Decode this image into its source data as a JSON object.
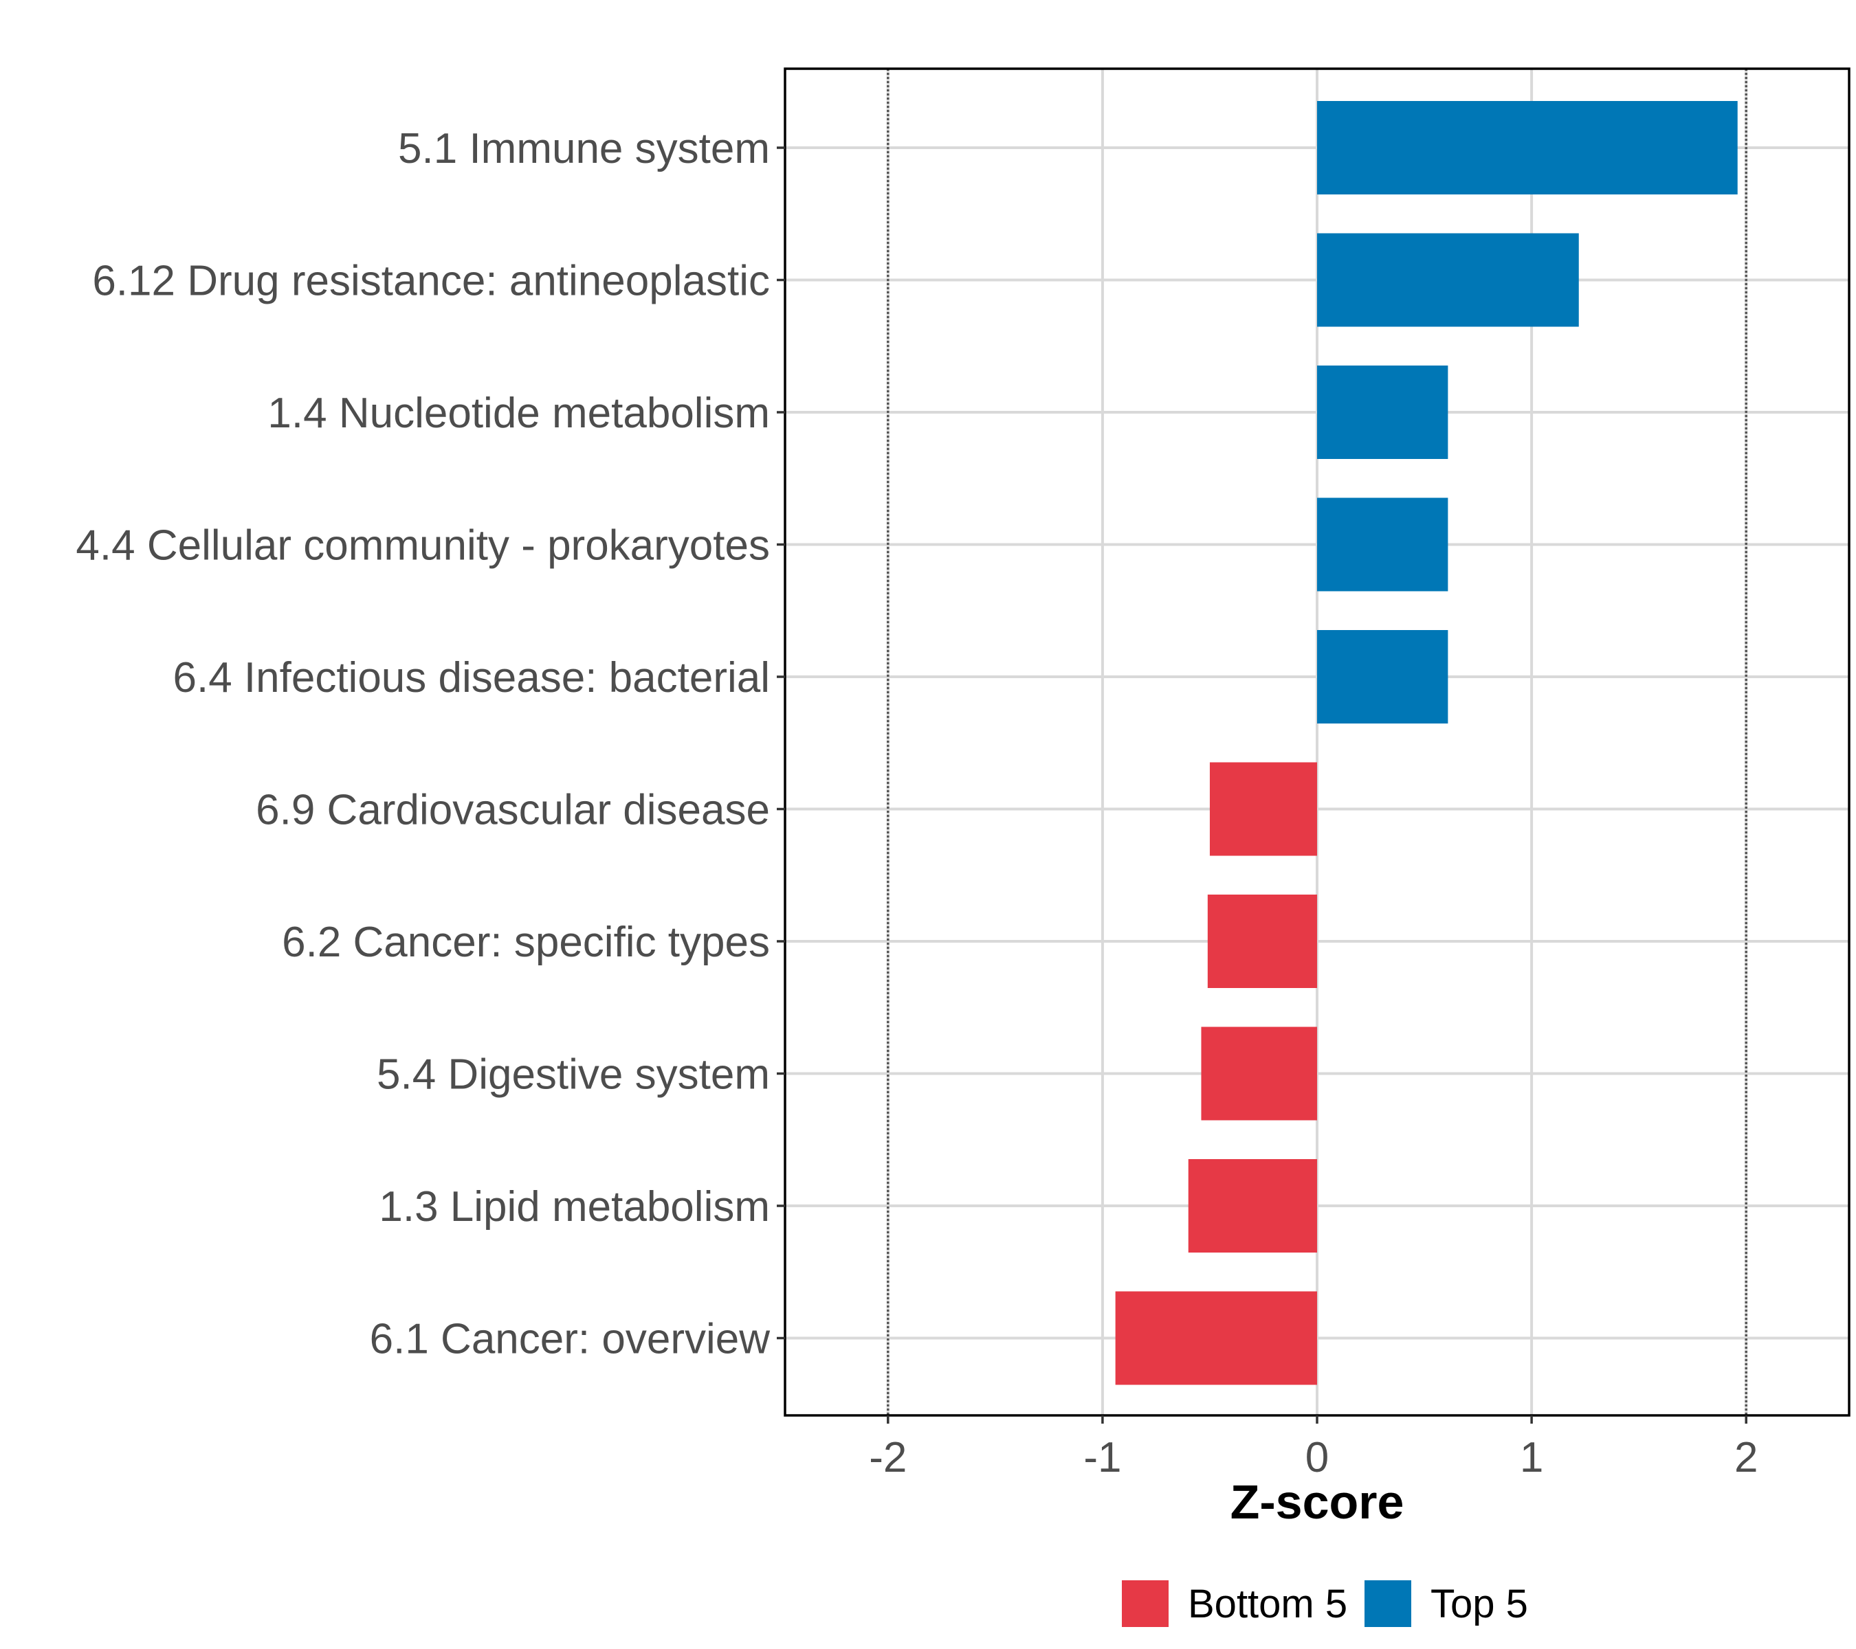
{
  "chart_data": {
    "type": "bar",
    "orientation": "horizontal",
    "categories": [
      "5.1 Immune system",
      "6.12 Drug resistance: antineoplastic",
      "1.4 Nucleotide metabolism",
      "4.4 Cellular community - prokaryotes",
      "6.4 Infectious disease: bacterial",
      "6.9 Cardiovascular disease",
      "6.2 Cancer: specific types",
      "5.4 Digestive system",
      "1.3 Lipid metabolism",
      "6.1 Cancer: overview"
    ],
    "values": [
      1.96,
      1.22,
      0.61,
      0.61,
      0.61,
      -0.5,
      -0.51,
      -0.54,
      -0.6,
      -0.94
    ],
    "groups": [
      "Top 5",
      "Top 5",
      "Top 5",
      "Top 5",
      "Top 5",
      "Bottom 5",
      "Bottom 5",
      "Bottom 5",
      "Bottom 5",
      "Bottom 5"
    ],
    "xlabel": "Z-score",
    "ylabel": "",
    "xlim": [
      -2.48,
      2.48
    ],
    "xticks": [
      -2,
      -1,
      0,
      1,
      2
    ],
    "xtick_labels": [
      "-2",
      "-1",
      "0",
      "1",
      "2"
    ],
    "reference_lines": [
      -2,
      2
    ],
    "grid": true,
    "legend": {
      "placement": "bottom",
      "entries": [
        {
          "label": "Bottom 5",
          "color": "#E63946"
        },
        {
          "label": "Top 5",
          "color": "#0077B6"
        }
      ]
    }
  }
}
